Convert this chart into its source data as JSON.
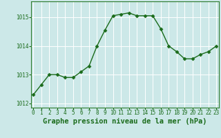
{
  "x": [
    0,
    1,
    2,
    3,
    4,
    5,
    6,
    7,
    8,
    9,
    10,
    11,
    12,
    13,
    14,
    15,
    16,
    17,
    18,
    19,
    20,
    21,
    22,
    23
  ],
  "y": [
    1012.3,
    1012.65,
    1013.0,
    1013.0,
    1012.9,
    1012.9,
    1013.1,
    1013.3,
    1014.0,
    1014.55,
    1015.05,
    1015.1,
    1015.15,
    1015.05,
    1015.05,
    1015.05,
    1014.6,
    1014.0,
    1013.8,
    1013.55,
    1013.55,
    1013.7,
    1013.8,
    1014.0
  ],
  "xlim": [
    -0.3,
    23.3
  ],
  "ylim": [
    1011.85,
    1015.55
  ],
  "yticks": [
    1012,
    1013,
    1014,
    1015
  ],
  "xticks": [
    0,
    1,
    2,
    3,
    4,
    5,
    6,
    7,
    8,
    9,
    10,
    11,
    12,
    13,
    14,
    15,
    16,
    17,
    18,
    19,
    20,
    21,
    22,
    23
  ],
  "xlabel": "Graphe pression niveau de la mer (hPa)",
  "line_color": "#1a6b1a",
  "marker_color": "#1a6b1a",
  "bg_color": "#cce8e8",
  "grid_color": "#ffffff",
  "text_color": "#1a6b1a",
  "border_color": "#2a7a2a",
  "markersize": 2.5,
  "linewidth": 1.0,
  "xlabel_fontsize": 7.5,
  "tick_fontsize": 5.5
}
